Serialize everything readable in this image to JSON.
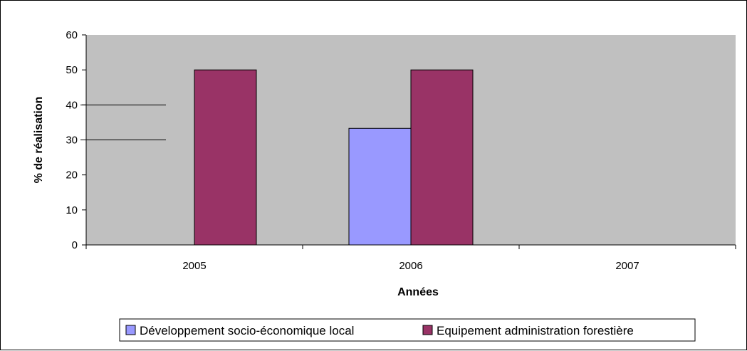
{
  "chart_data": {
    "type": "bar",
    "categories": [
      "2005",
      "2006",
      "2007"
    ],
    "series": [
      {
        "name": "Développement socio-économique local",
        "color": "#9999ff",
        "values": [
          0,
          33.3,
          0
        ]
      },
      {
        "name": "Equipement administration forestière",
        "color": "#993366",
        "values": [
          50,
          50,
          0
        ]
      }
    ],
    "xlabel": "Années",
    "ylabel": "% de réalisation",
    "ylim": [
      0,
      60
    ],
    "yticks": [
      0,
      10,
      20,
      30,
      40,
      50,
      60
    ],
    "plot_background": "#c0c0c0",
    "grid": false,
    "legend_position": "bottom"
  }
}
